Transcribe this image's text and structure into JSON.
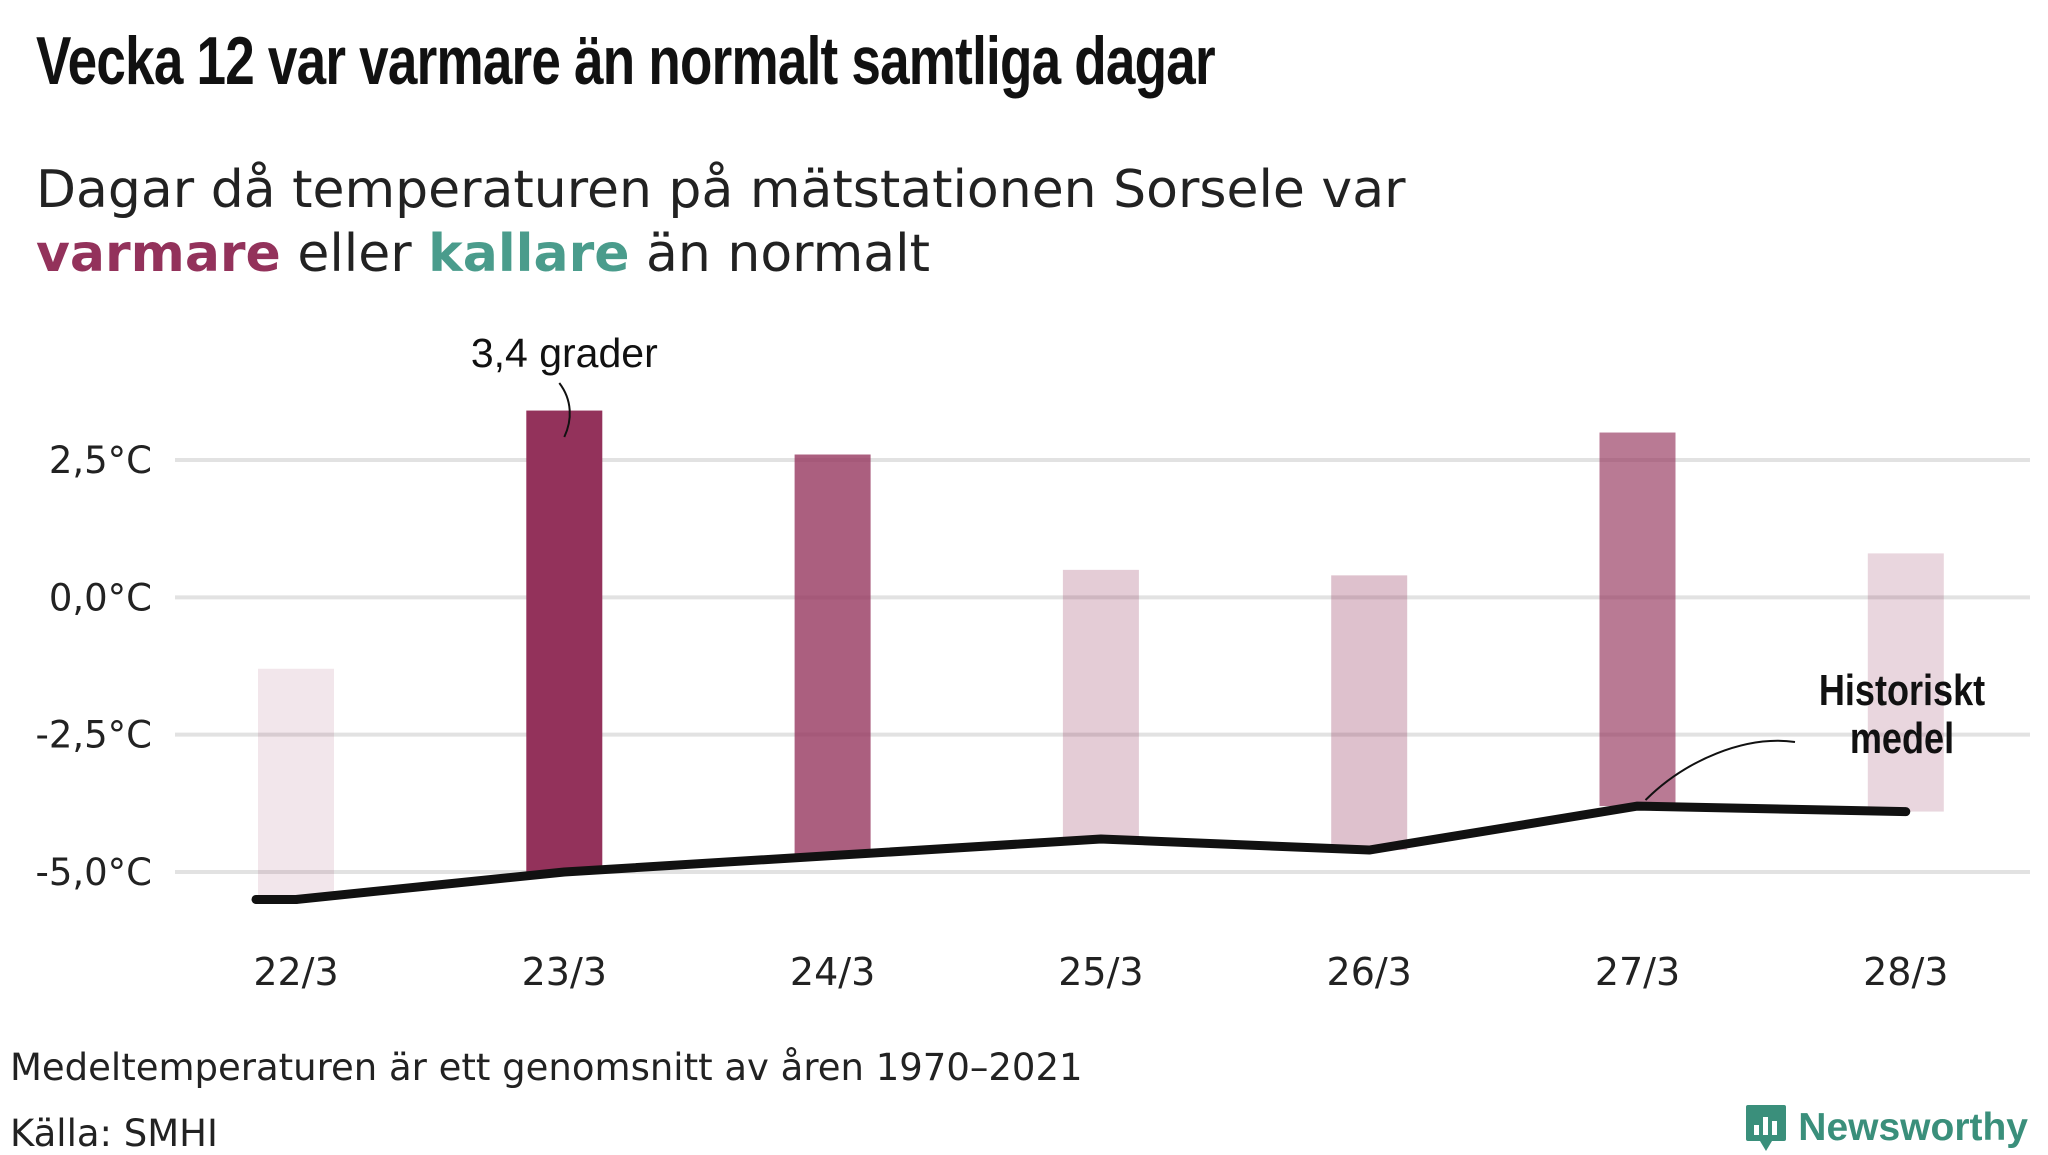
{
  "title": "Vecka 12 var varmare än normalt samtliga dagar",
  "subtitle": {
    "line1": "Dagar då temperaturen på mätstationen Sorsele var",
    "warm": "varmare",
    "middle": " eller ",
    "cold": "kallare",
    "end": " än normalt"
  },
  "note": "Medeltemperaturen är ett genomsnitt av åren 1970–2021",
  "source": "Källa: SMHI",
  "brand": "Newsworthy",
  "colors": {
    "warm": "#93325b",
    "cold": "#4a9c8c",
    "line": "#111111",
    "grid": "#e2e2e2",
    "brand": "#3a8f7b"
  },
  "chart_data": {
    "type": "bar",
    "categories": [
      "22/3",
      "23/3",
      "24/3",
      "25/3",
      "26/3",
      "27/3",
      "28/3"
    ],
    "series": [
      {
        "values": [
          -1.3,
          3.4,
          2.6,
          0.5,
          0.4,
          3.0,
          0.8
        ]
      },
      {
        "name": "Historiskt medel",
        "type": "line",
        "values": [
          -5.5,
          -5.0,
          -4.7,
          -4.4,
          -4.6,
          -3.8,
          -3.9
        ]
      }
    ],
    "bar_opacity": [
      0.12,
      1.0,
      0.78,
      0.25,
      0.3,
      0.65,
      0.2
    ],
    "yticks": [
      2.5,
      0.0,
      -2.5,
      -5.0
    ],
    "ytick_labels": [
      "2,5°C",
      "0,0°C",
      "-2,5°C",
      "-5,0°C"
    ],
    "ylim": [
      -6.0,
      4.0
    ],
    "grid": true,
    "annotations": [
      {
        "text": "3,4 grader",
        "category": "23/3"
      },
      {
        "lines": [
          "Historiskt",
          "medel"
        ],
        "category": "27/3"
      }
    ]
  }
}
